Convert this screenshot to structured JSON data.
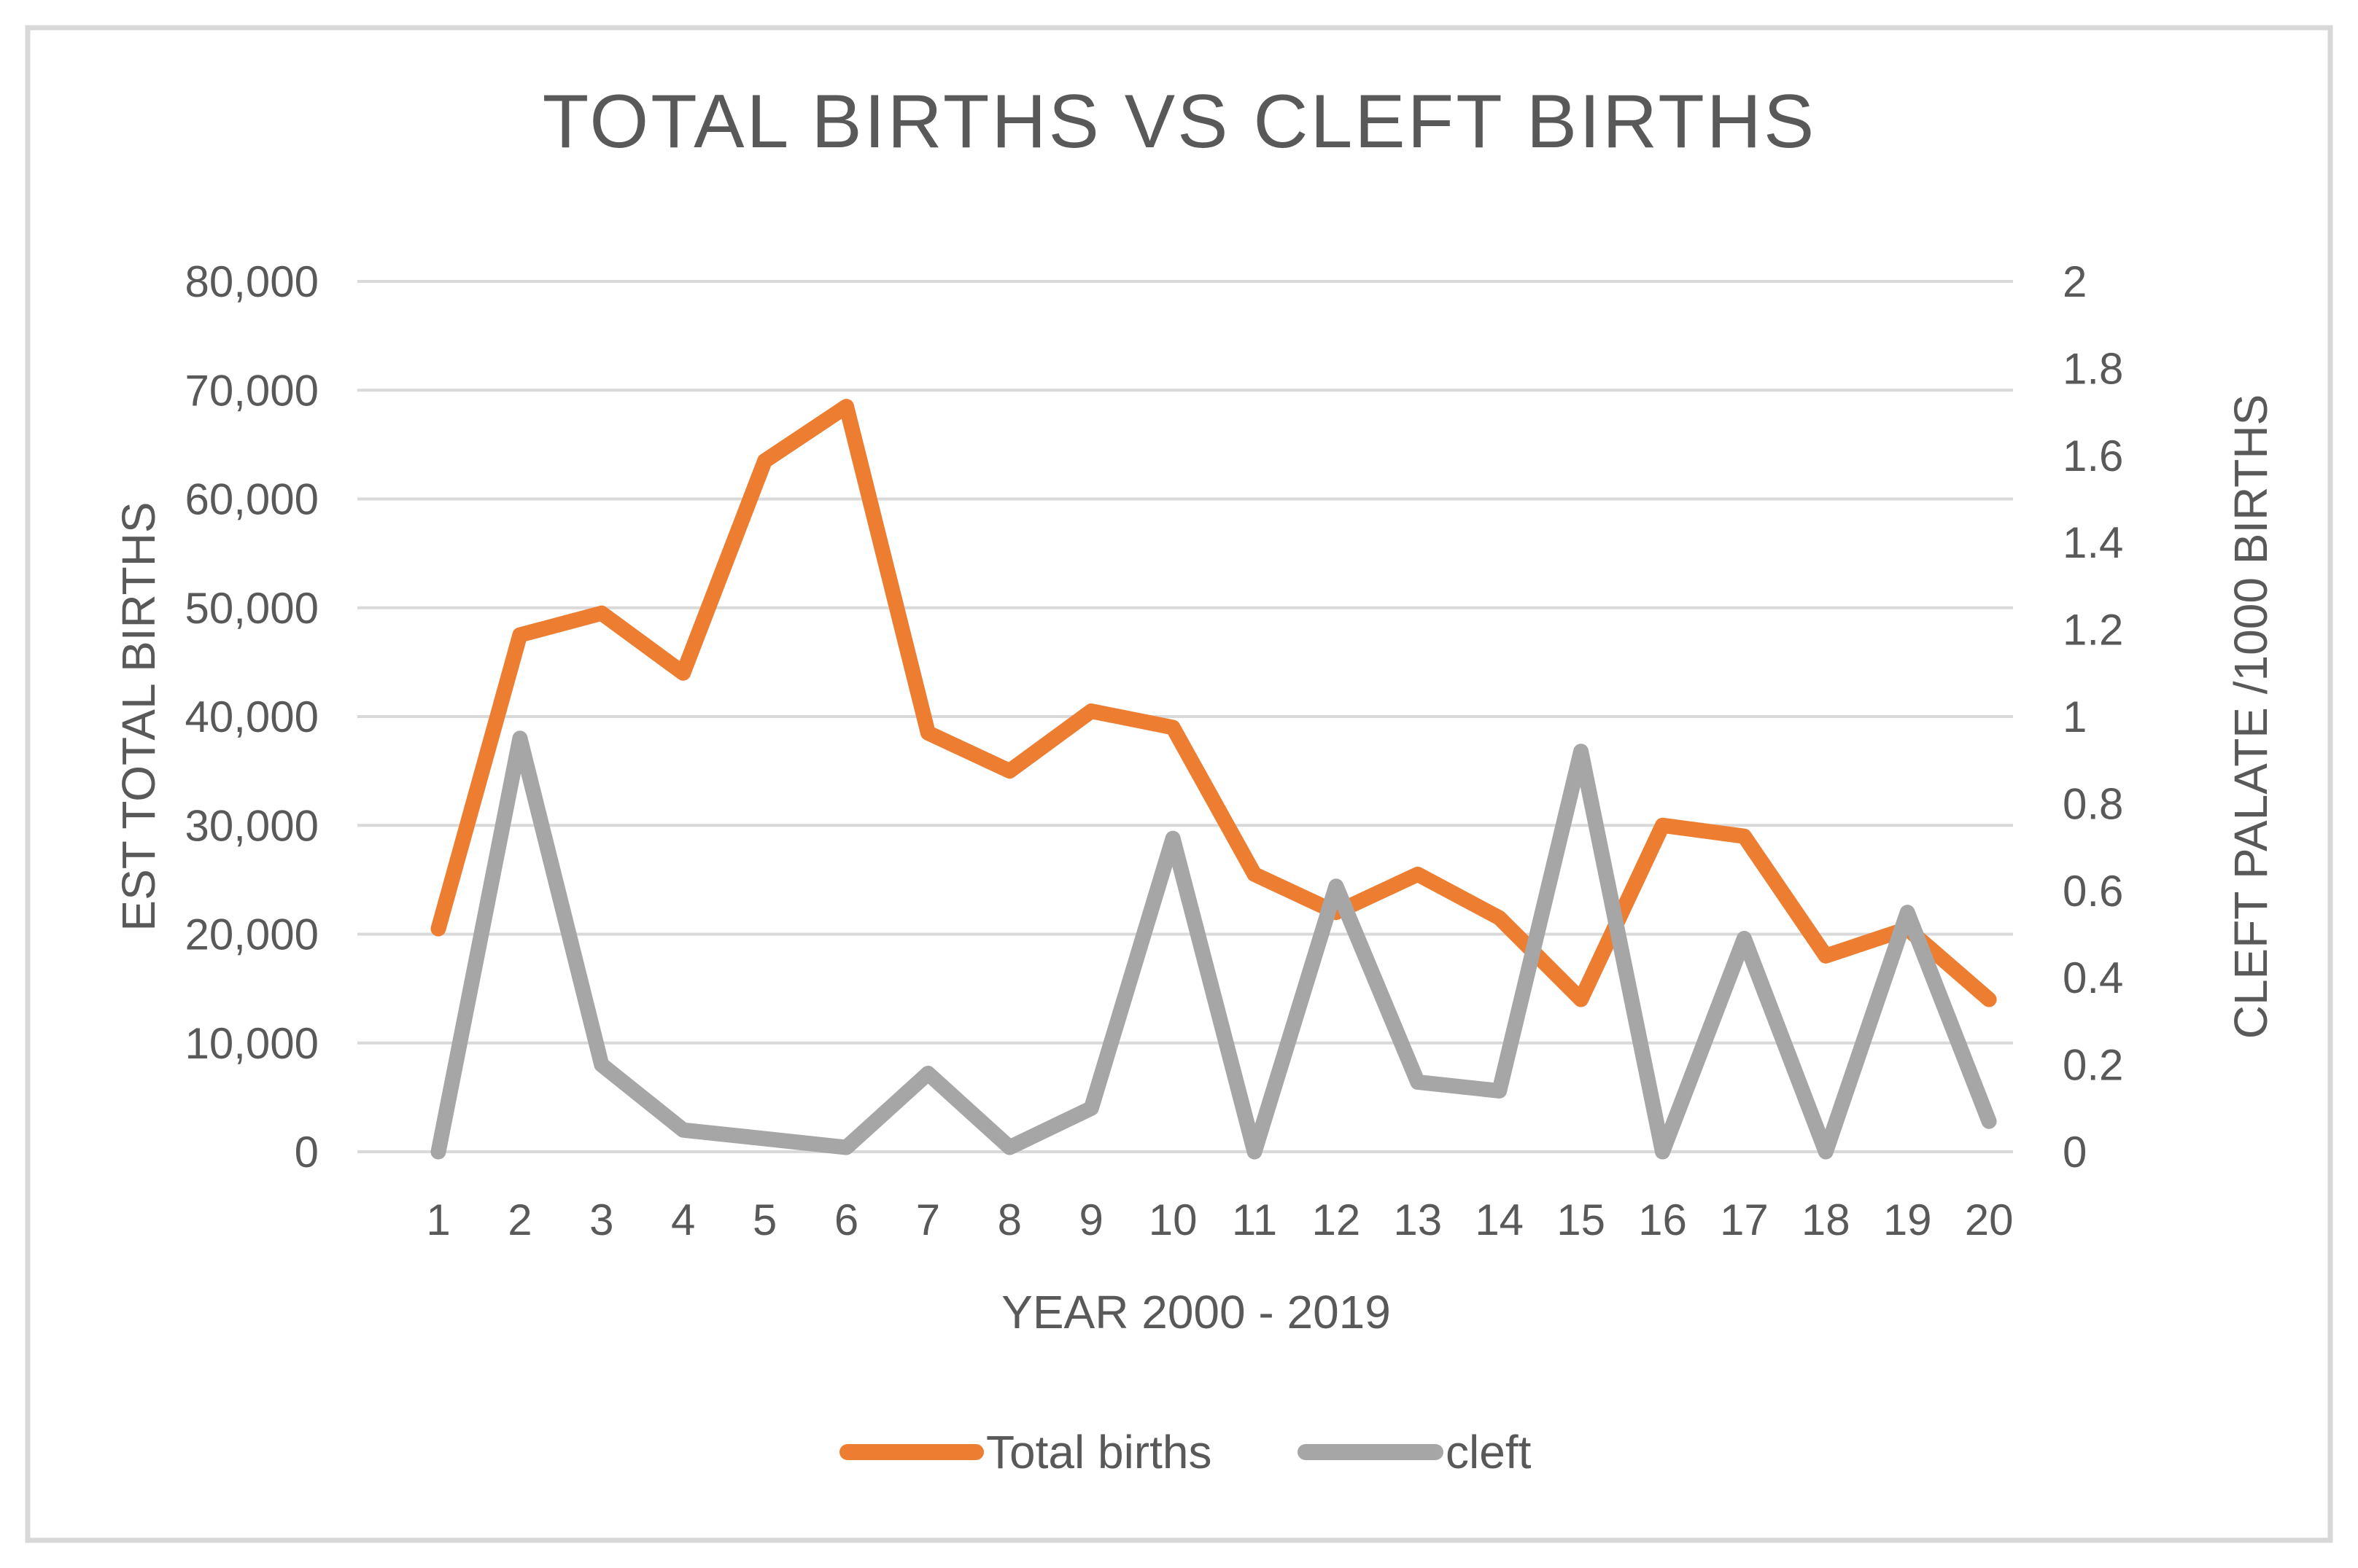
{
  "chart_data": {
    "type": "line",
    "title": "TOTAL BIRTHS VS CLEFT BIRTHS",
    "xlabel": "YEAR 2000 - 2019",
    "ylabel_left": "EST TOTAL BIRTHS",
    "ylabel_right": "CLEFT PALATE /1000 BIRTHS",
    "categories": [
      "1",
      "2",
      "3",
      "4",
      "5",
      "6",
      "7",
      "8",
      "9",
      "10",
      "11",
      "12",
      "13",
      "14",
      "15",
      "16",
      "17",
      "18",
      "19",
      "20"
    ],
    "series": [
      {
        "name": "Total births",
        "axis": "left",
        "color": "#ED7D31",
        "values": [
          20500,
          47500,
          49500,
          44000,
          63500,
          68500,
          38500,
          35000,
          40500,
          39000,
          25500,
          22000,
          25500,
          21500,
          14000,
          30000,
          29000,
          18000,
          20500,
          14000
        ]
      },
      {
        "name": "cleft",
        "axis": "right",
        "color": "#A6A6A6",
        "values": [
          0,
          0.95,
          0.2,
          0.05,
          0.03,
          0.01,
          0.18,
          0.01,
          0.1,
          0.72,
          0,
          0.61,
          0.16,
          0.14,
          0.92,
          0,
          0.49,
          0,
          0.55,
          0.07
        ]
      }
    ],
    "left_axis": {
      "min": 0,
      "max": 80000,
      "step": 10000,
      "tick_labels": [
        "0",
        "10,000",
        "20,000",
        "30,000",
        "40,000",
        "50,000",
        "60,000",
        "70,000",
        "80,000"
      ]
    },
    "right_axis": {
      "min": 0,
      "max": 2,
      "step": 0.2,
      "tick_labels": [
        "0",
        "0.2",
        "0.4",
        "0.6",
        "0.8",
        "1",
        "1.2",
        "1.4",
        "1.6",
        "1.8",
        "2"
      ]
    },
    "grid": true,
    "gridline_color": "#D9D9D9",
    "text_color": "#595959",
    "legend_position": "bottom"
  }
}
